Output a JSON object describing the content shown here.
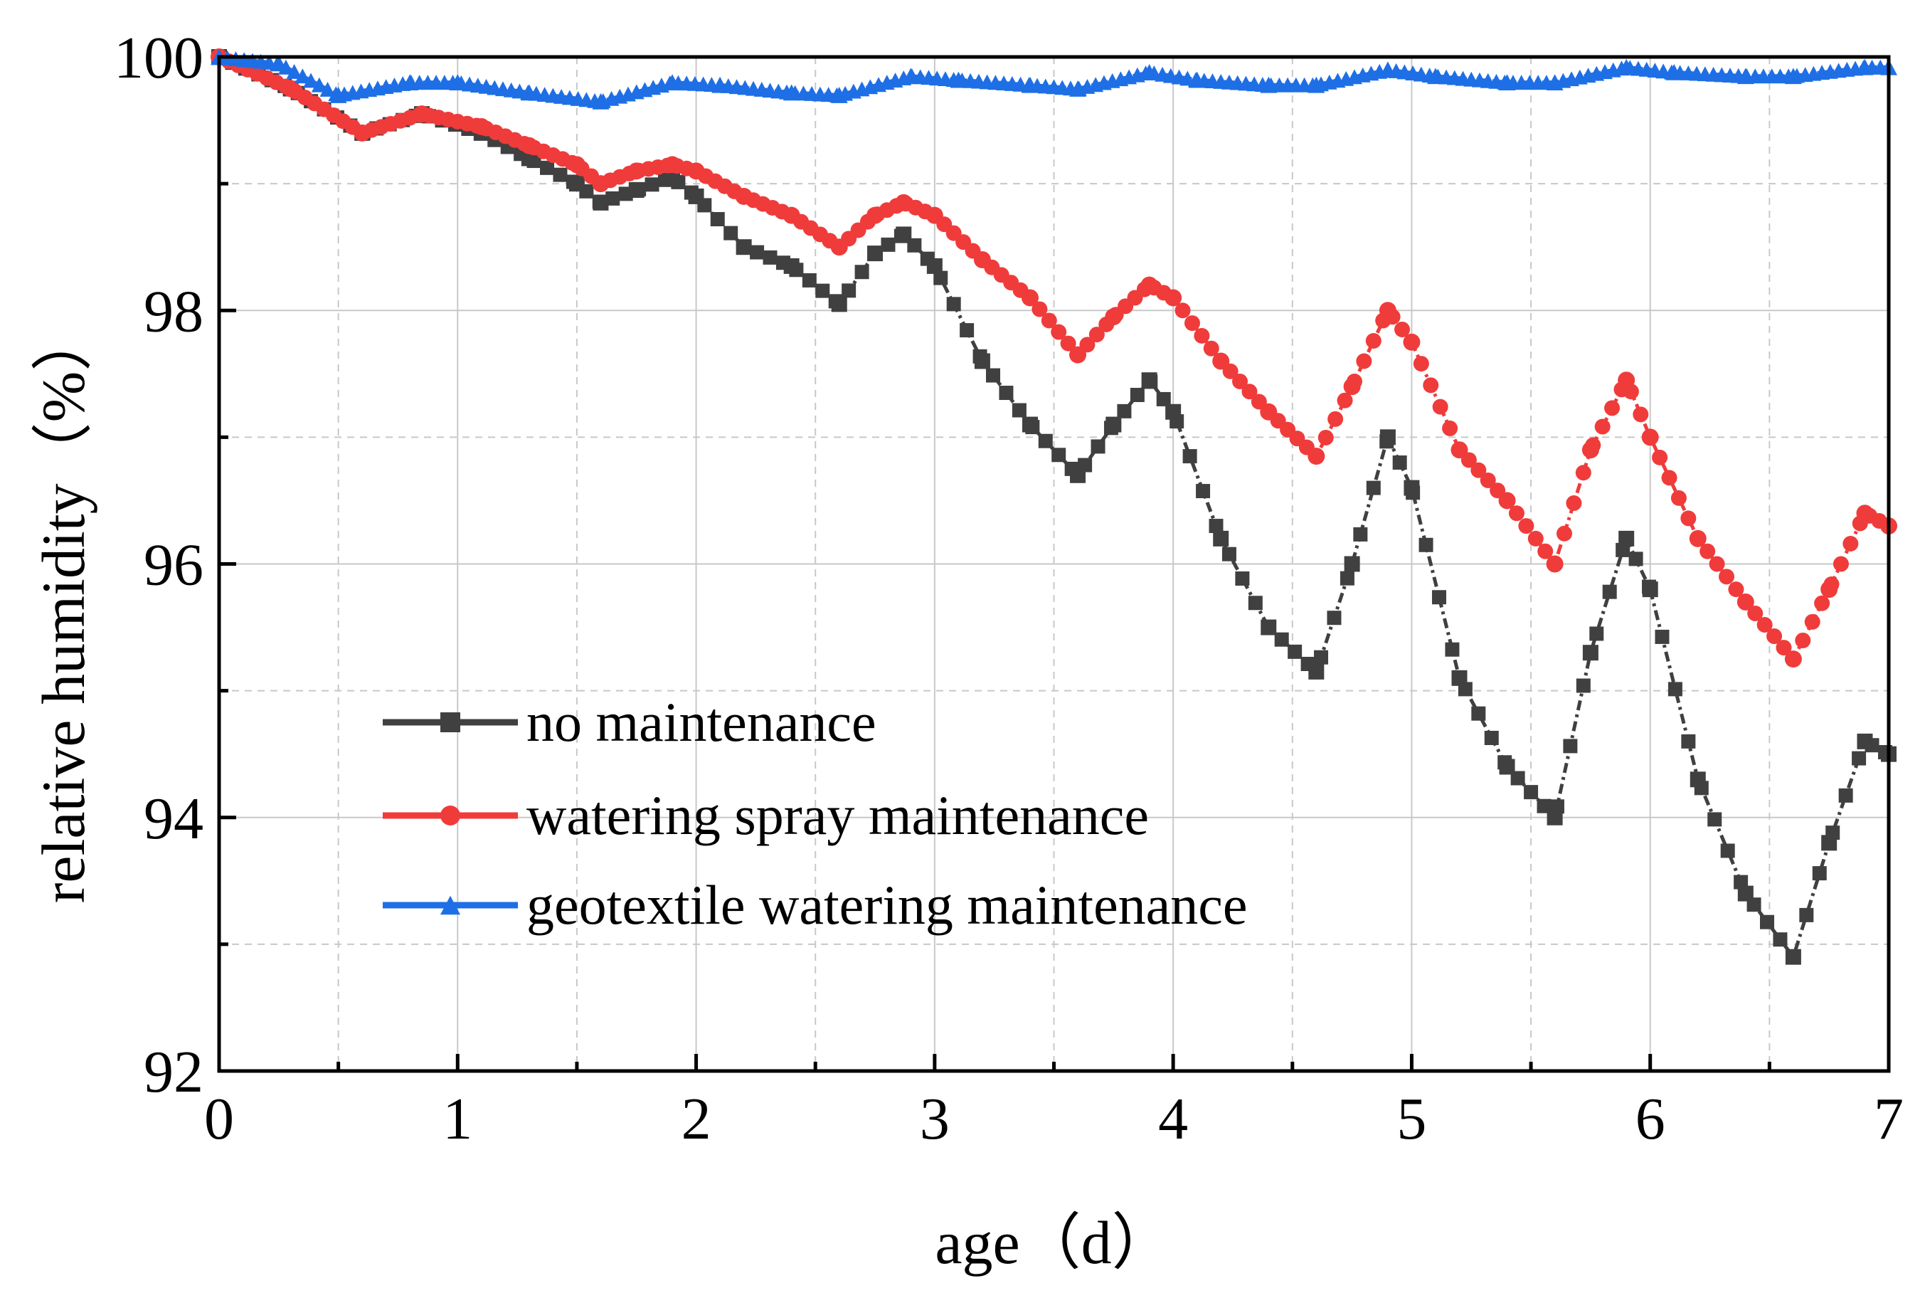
{
  "chart_data": {
    "type": "line",
    "xlabel": "age（d）",
    "ylabel": "relative humidity（%）",
    "xlim": [
      0,
      7
    ],
    "ylim": [
      92,
      100
    ],
    "x_ticks": [
      0,
      1,
      2,
      3,
      4,
      5,
      6,
      7
    ],
    "y_ticks": [
      92,
      94,
      96,
      98,
      100
    ],
    "x_tick_labels": [
      "0",
      "1",
      "2",
      "3",
      "4",
      "5",
      "6",
      "7"
    ],
    "y_tick_labels": [
      "92",
      "94",
      "96",
      "98",
      "100"
    ],
    "grid": true,
    "legend_position": "lower-left",
    "series": [
      {
        "name": "no maintenance",
        "color": "#404040",
        "marker": "square",
        "x": [
          0,
          0.3,
          0.6,
          0.85,
          1.1,
          1.3,
          1.5,
          1.6,
          1.75,
          1.9,
          2.0,
          2.2,
          2.4,
          2.6,
          2.75,
          2.87,
          3.0,
          3.2,
          3.4,
          3.6,
          3.75,
          3.9,
          4.0,
          4.2,
          4.4,
          4.6,
          4.75,
          4.9,
          5.0,
          5.2,
          5.4,
          5.6,
          5.75,
          5.9,
          6.0,
          6.2,
          6.4,
          6.6,
          6.75,
          6.9,
          7.0
        ],
        "values": [
          100,
          99.75,
          99.4,
          99.55,
          99.4,
          99.2,
          99.0,
          98.85,
          98.95,
          99.05,
          98.9,
          98.5,
          98.35,
          98.05,
          98.45,
          98.6,
          98.35,
          97.6,
          97.1,
          96.7,
          97.1,
          97.45,
          97.2,
          96.2,
          95.5,
          95.15,
          96.0,
          97.0,
          96.6,
          95.1,
          94.4,
          94.0,
          95.3,
          96.2,
          95.8,
          94.3,
          93.4,
          92.9,
          93.8,
          94.6,
          94.5
        ]
      },
      {
        "name": "watering spray maintenance",
        "color": "#f03b3b",
        "marker": "circle",
        "x": [
          0,
          0.3,
          0.6,
          0.85,
          1.1,
          1.3,
          1.5,
          1.6,
          1.75,
          1.9,
          2.0,
          2.2,
          2.4,
          2.6,
          2.75,
          2.87,
          3.0,
          3.2,
          3.4,
          3.6,
          3.75,
          3.9,
          4.0,
          4.2,
          4.4,
          4.6,
          4.75,
          4.9,
          5.0,
          5.2,
          5.4,
          5.6,
          5.75,
          5.9,
          6.0,
          6.2,
          6.4,
          6.6,
          6.75,
          6.9,
          7.0
        ],
        "values": [
          100,
          99.75,
          99.4,
          99.55,
          99.45,
          99.3,
          99.15,
          99.0,
          99.1,
          99.15,
          99.1,
          98.9,
          98.75,
          98.5,
          98.75,
          98.85,
          98.75,
          98.4,
          98.1,
          97.65,
          97.95,
          98.2,
          98.1,
          97.6,
          97.2,
          96.85,
          97.4,
          98.0,
          97.75,
          96.9,
          96.5,
          96.0,
          96.9,
          97.45,
          97.0,
          96.2,
          95.7,
          95.25,
          95.8,
          96.4,
          96.3
        ]
      },
      {
        "name": "geotextile watering maintenance",
        "color": "#1e6fe6",
        "marker": "triangle",
        "x": [
          0,
          0.25,
          0.5,
          0.8,
          1.0,
          1.3,
          1.6,
          1.9,
          2.1,
          2.4,
          2.6,
          2.9,
          3.1,
          3.4,
          3.6,
          3.9,
          4.1,
          4.4,
          4.6,
          4.9,
          5.1,
          5.4,
          5.6,
          5.9,
          6.1,
          6.4,
          6.6,
          6.9,
          7.0
        ],
        "values": [
          100,
          99.95,
          99.7,
          99.8,
          99.8,
          99.72,
          99.65,
          99.8,
          99.78,
          99.72,
          99.7,
          99.85,
          99.82,
          99.78,
          99.75,
          99.88,
          99.82,
          99.78,
          99.78,
          99.9,
          99.85,
          99.8,
          99.8,
          99.92,
          99.88,
          99.85,
          99.85,
          99.92,
          99.92
        ]
      }
    ]
  }
}
